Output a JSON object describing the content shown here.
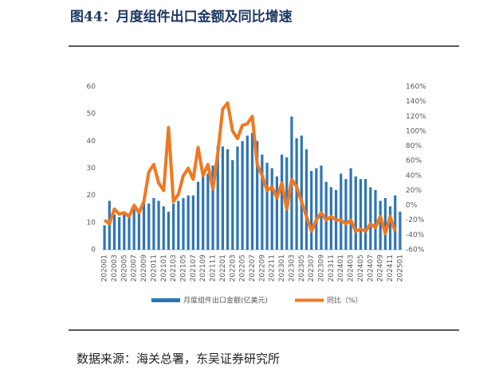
{
  "chart_data": {
    "type": "bar_line",
    "title": "图44：月度组件出口金额及同比增速",
    "source": "数据来源：海关总署，东吴证券研究所",
    "categories": [
      "202001",
      null,
      "202003",
      null,
      "202005",
      null,
      "202007",
      null,
      "202009",
      null,
      "202011",
      null,
      "202101",
      null,
      "202103",
      null,
      "202105",
      null,
      "202107",
      null,
      "202109",
      null,
      "202111",
      null,
      "202201",
      null,
      "202203",
      null,
      "202205",
      null,
      "202207",
      null,
      "202209",
      null,
      "202211",
      null,
      "202301",
      null,
      "202303",
      null,
      "202305",
      null,
      "202307",
      null,
      "202309",
      null,
      "202311",
      null,
      "202401",
      null,
      "202403",
      null,
      "202405",
      null,
      "202407",
      null,
      "202409",
      null,
      "202411",
      null,
      "202501"
    ],
    "series": [
      {
        "name": "月度组件出口金额(亿美元)",
        "color": "#2e75b6",
        "axis": "y",
        "values": [
          9,
          18,
          13,
          12,
          13,
          12,
          15,
          15,
          17,
          17,
          19,
          18,
          16,
          14,
          17,
          18,
          19,
          20,
          20,
          25,
          27,
          28,
          31,
          38,
          38,
          37,
          33,
          38,
          40,
          42,
          43,
          40,
          35,
          32,
          30,
          27,
          35,
          34,
          49,
          41,
          42,
          37,
          29,
          30,
          31,
          25,
          23,
          22,
          28,
          26,
          30,
          27,
          26,
          26,
          23,
          22,
          18,
          19,
          16,
          20,
          14
        ]
      },
      {
        "name": "同比（%）",
        "color": "#f07820",
        "axis": "y2",
        "values": [
          -20,
          -25,
          -5,
          -12,
          -10,
          -15,
          0,
          -10,
          5,
          45,
          55,
          30,
          20,
          105,
          5,
          15,
          40,
          50,
          35,
          78,
          40,
          55,
          22,
          70,
          130,
          138,
          100,
          90,
          108,
          110,
          120,
          55,
          40,
          20,
          25,
          10,
          30,
          -5,
          35,
          25,
          5,
          -15,
          -35,
          -20,
          -10,
          -20,
          -15,
          -20,
          -20,
          -25,
          -20,
          -35,
          -32,
          -35,
          -25,
          -30,
          -15,
          -38,
          -15,
          -35,
          null
        ]
      }
    ],
    "ylim": [
      0,
      60
    ],
    "yticks": [
      0,
      10,
      20,
      30,
      40,
      50,
      60
    ],
    "y2lim": [
      -60,
      160
    ],
    "y2ticks": [
      {
        "value": -60,
        "label": "-60%"
      },
      {
        "value": -40,
        "label": "-40%"
      },
      {
        "value": -20,
        "label": "-20%"
      },
      {
        "value": 0,
        "label": "0%"
      },
      {
        "value": 20,
        "label": "20%"
      },
      {
        "value": 40,
        "label": "40%"
      },
      {
        "value": 60,
        "label": "60%"
      },
      {
        "value": 80,
        "label": "80%"
      },
      {
        "value": 100,
        "label": "100%"
      },
      {
        "value": 120,
        "label": "120%"
      },
      {
        "value": 140,
        "label": "140%"
      },
      {
        "value": 160,
        "label": "160%"
      }
    ]
  }
}
